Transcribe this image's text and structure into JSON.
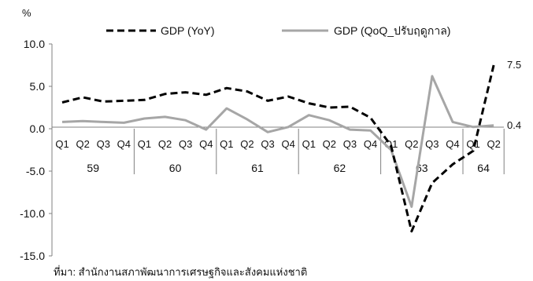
{
  "chart_data": {
    "type": "line",
    "y_unit": "%",
    "ylim": [
      -15.0,
      10.0
    ],
    "y_ticks": [
      "10.0",
      "5.0",
      "0.0",
      "-5.0",
      "-10.0",
      "-15.0"
    ],
    "quarters": [
      "Q1",
      "Q2",
      "Q3",
      "Q4",
      "Q1",
      "Q2",
      "Q3",
      "Q4",
      "Q1",
      "Q2",
      "Q3",
      "Q4",
      "Q1",
      "Q2",
      "Q3",
      "Q4",
      "Q1",
      "Q2",
      "Q3",
      "Q4",
      "Q1",
      "Q2"
    ],
    "years": [
      {
        "label": "59",
        "quarters": 4
      },
      {
        "label": "60",
        "quarters": 4
      },
      {
        "label": "61",
        "quarters": 4
      },
      {
        "label": "62",
        "quarters": 4
      },
      {
        "label": "63",
        "quarters": 4
      },
      {
        "label": "64",
        "quarters": 2
      }
    ],
    "series": [
      {
        "name": "GDP (YoY)",
        "style": "dashed",
        "color": "#000000",
        "values": [
          3.1,
          3.7,
          3.2,
          3.3,
          3.4,
          4.1,
          4.3,
          4.0,
          4.8,
          4.4,
          3.3,
          3.8,
          3.0,
          2.5,
          2.6,
          1.3,
          -2.0,
          -12.1,
          -6.4,
          -4.2,
          -2.6,
          7.5
        ],
        "end_label": "7.5"
      },
      {
        "name": "GDP (QoQ_ปรับฤดูกาล)",
        "style": "solid",
        "color": "#a6a6a6",
        "values": [
          0.8,
          0.9,
          0.8,
          0.7,
          1.2,
          1.4,
          1.0,
          -0.1,
          2.4,
          1.1,
          -0.4,
          0.2,
          1.6,
          1.0,
          -0.1,
          -0.2,
          -2.5,
          -9.2,
          6.2,
          0.8,
          0.2,
          0.4
        ],
        "end_label": "0.4"
      }
    ],
    "source": "ที่มา: สำนักงานสภาพัฒนาการเศรษฐกิจและสังคมแห่งชาติ"
  }
}
